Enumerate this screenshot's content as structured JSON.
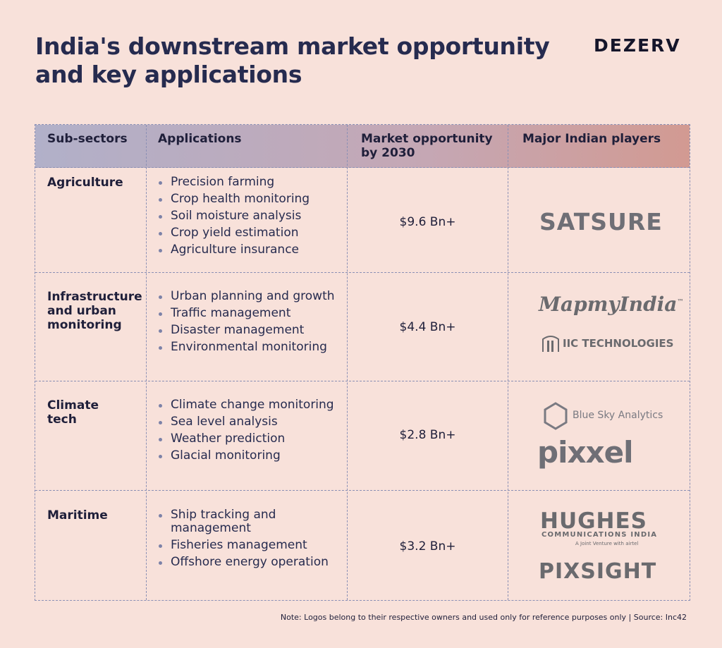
{
  "header": {
    "title": "India's downstream market opportunity and key applications",
    "brand": "DEZERV"
  },
  "table": {
    "columns": [
      "Sub-sectors",
      "Applications",
      "Market opportunity by 2030",
      "Major Indian players"
    ],
    "rows": [
      {
        "sector": "Agriculture",
        "applications": [
          "Precision farming",
          "Crop health monitoring",
          "Soil moisture analysis",
          "Crop yield estimation",
          "Agriculture insurance"
        ],
        "market": "$9.6 Bn+",
        "players": [
          "SATSURE"
        ]
      },
      {
        "sector": "Infrastructure and urban monitoring",
        "applications": [
          "Urban planning and growth",
          "Traffic management",
          "Disaster management",
          "Environmental monitoring"
        ],
        "market": "$4.4 Bn+",
        "players": [
          "MapmyIndia",
          "IIC TECHNOLOGIES"
        ]
      },
      {
        "sector": "Climate tech",
        "applications": [
          "Climate change monitoring",
          "Sea level analysis",
          "Weather prediction",
          "Glacial monitoring"
        ],
        "market": "$2.8 Bn+",
        "players": [
          "Blue Sky Analytics",
          "pixxel"
        ]
      },
      {
        "sector": "Maritime",
        "applications": [
          "Ship tracking and management",
          "Fisheries management",
          "Offshore energy operation"
        ],
        "market": "$3.2 Bn+",
        "players": [
          "HUGHES",
          "PIXSIGHT"
        ]
      }
    ]
  },
  "logos": {
    "mapmyindia_tm": "™",
    "hughes_sub": "COMMUNICATIONS INDIA",
    "hughes_jv": "A Joint Venture with airtel"
  },
  "footer": {
    "note": "Note: Logos belong to their respective owners and used only for reference purposes only | Source: Inc42"
  },
  "colors": {
    "background": "#f8e1da",
    "title": "#262b4f",
    "border": "#8b90b5",
    "header_start": "#b1b0c9",
    "header_end": "#d29a92",
    "logo_grey": "#6f6f76"
  }
}
